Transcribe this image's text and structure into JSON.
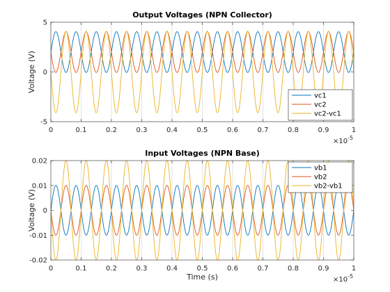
{
  "chart_data": [
    {
      "type": "line",
      "title": "Output Voltages (NPN Collector)",
      "xlabel": "",
      "ylabel": "Voltage (V)",
      "x_exponent_label": "×10",
      "x_exponent_power": "-5",
      "xlim": [
        0,
        1e-05
      ],
      "ylim": [
        -5,
        5
      ],
      "x_ticks": [
        0,
        0.1,
        0.2,
        0.3,
        0.4,
        0.5,
        0.6,
        0.7,
        0.8,
        0.9,
        1
      ],
      "x_tick_labels": [
        "0",
        "0.1",
        "0.2",
        "0.3",
        "0.4",
        "0.5",
        "0.6",
        "0.7",
        "0.8",
        "0.9",
        "1"
      ],
      "y_ticks": [
        -5,
        0,
        5
      ],
      "y_tick_labels": [
        "-5",
        "0",
        "5"
      ],
      "grid": "vertical",
      "legend_position": "bottom-right",
      "frequency_hz": 1500000,
      "series": [
        {
          "name": "vc1",
          "color": "#0072BD",
          "offset": 2.0,
          "amplitude": 2.05,
          "phase_deg": 0
        },
        {
          "name": "vc2",
          "color": "#D95319",
          "offset": 2.0,
          "amplitude": 2.05,
          "phase_deg": 180
        },
        {
          "name": "vc2-vc1",
          "color": "#EDB120",
          "offset": 0.0,
          "amplitude": 4.1,
          "phase_deg": 180
        }
      ]
    },
    {
      "type": "line",
      "title": "Input Voltages (NPN Base)",
      "xlabel": "Time (s)",
      "ylabel": "Voltage (V)",
      "x_exponent_label": "×10",
      "x_exponent_power": "-5",
      "xlim": [
        0,
        1e-05
      ],
      "ylim": [
        -0.02,
        0.02
      ],
      "x_ticks": [
        0,
        0.1,
        0.2,
        0.3,
        0.4,
        0.5,
        0.6,
        0.7,
        0.8,
        0.9,
        1
      ],
      "x_tick_labels": [
        "0",
        "0.1",
        "0.2",
        "0.3",
        "0.4",
        "0.5",
        "0.6",
        "0.7",
        "0.8",
        "0.9",
        "1"
      ],
      "y_ticks": [
        -0.02,
        -0.01,
        0,
        0.01,
        0.02
      ],
      "y_tick_labels": [
        "-0.02",
        "-0.01",
        "0",
        "0.01",
        "0.02"
      ],
      "grid": "vertical",
      "legend_position": "top-right",
      "frequency_hz": 1500000,
      "series": [
        {
          "name": "vb1",
          "color": "#0072BD",
          "offset": 0.0,
          "amplitude": 0.01,
          "phase_deg": 0
        },
        {
          "name": "vb2",
          "color": "#D95319",
          "offset": 0.0,
          "amplitude": 0.01,
          "phase_deg": 180
        },
        {
          "name": "vb2-vb1",
          "color": "#EDB120",
          "offset": 0.0,
          "amplitude": 0.02,
          "phase_deg": 180
        }
      ]
    }
  ]
}
